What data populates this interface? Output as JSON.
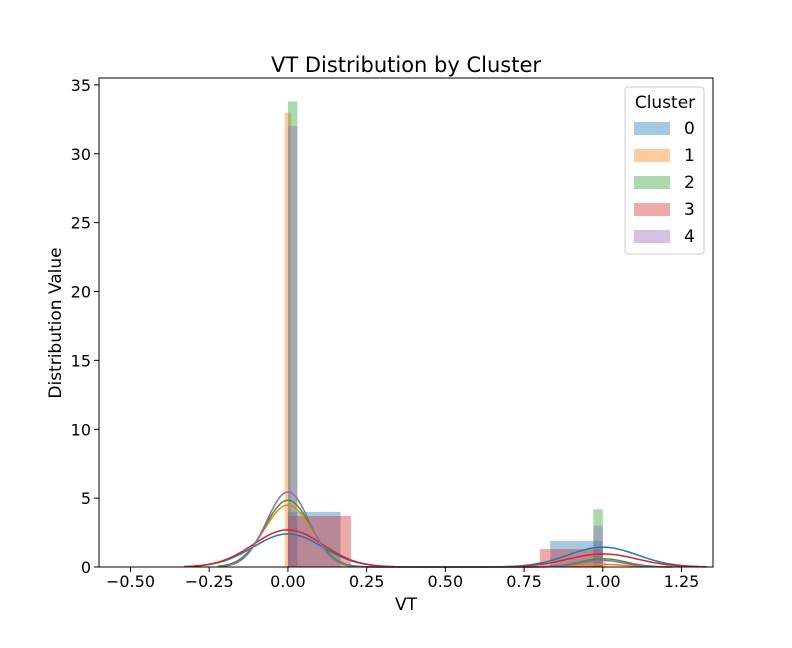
{
  "chart_data": {
    "type": "bar",
    "title": "VT Distribution by Cluster",
    "xlabel": "VT",
    "ylabel": "Distribution Value",
    "xlim": [
      -0.6,
      1.35
    ],
    "ylim": [
      0,
      35.5
    ],
    "x_ticks": [
      -0.5,
      -0.25,
      0.0,
      0.25,
      0.5,
      0.75,
      1.0,
      1.25
    ],
    "x_tick_labels": [
      "−0.50",
      "−0.25",
      "0.00",
      "0.25",
      "0.50",
      "0.75",
      "1.00",
      "1.25"
    ],
    "y_ticks": [
      0,
      5,
      10,
      15,
      20,
      25,
      30,
      35
    ],
    "y_tick_labels": [
      "0",
      "5",
      "10",
      "15",
      "20",
      "25",
      "30",
      "35"
    ],
    "grid": false,
    "legend": {
      "title": "Cluster",
      "position": "top-right"
    },
    "series": [
      {
        "name": "0",
        "color": "#1f77b4",
        "bars": [
          {
            "x0": 0.0,
            "x1": 0.167,
            "height": 4.0
          },
          {
            "x0": 0.833,
            "x1": 1.0,
            "height": 1.9
          }
        ],
        "kde": {
          "weights": [
            0.625,
            0.375
          ],
          "sigma": 0.11,
          "peak0": 2.4
        }
      },
      {
        "name": "1",
        "color": "#ff7f0e",
        "bars": [
          {
            "x0": -0.01,
            "x1": 0.01,
            "height": 33.0
          },
          {
            "x0": 0.99,
            "x1": 1.01,
            "height": 0.4
          }
        ],
        "kde": {
          "weights": [
            0.96,
            0.04
          ],
          "sigma": 0.075,
          "peak0": 4.5
        }
      },
      {
        "name": "2",
        "color": "#2ca02c",
        "bars": [
          {
            "x0": 0.0,
            "x1": 0.03,
            "height": 33.8
          },
          {
            "x0": 0.97,
            "x1": 1.0,
            "height": 4.2
          }
        ],
        "kde": {
          "weights": [
            0.89,
            0.11
          ],
          "sigma": 0.073,
          "peak0": 4.85
        }
      },
      {
        "name": "3",
        "color": "#d62728",
        "bars": [
          {
            "x0": 0.0,
            "x1": 0.2,
            "height": 3.7
          },
          {
            "x0": 0.8,
            "x1": 1.0,
            "height": 1.3
          }
        ],
        "kde": {
          "weights": [
            0.74,
            0.26
          ],
          "sigma": 0.11,
          "peak0": 2.7
        }
      },
      {
        "name": "4",
        "color": "#9467bd",
        "bars": [
          {
            "x0": 0.0,
            "x1": 0.03,
            "height": 32.0
          },
          {
            "x0": 0.97,
            "x1": 1.0,
            "height": 3.0
          }
        ],
        "kde": {
          "weights": [
            0.92,
            0.08
          ],
          "sigma": 0.068,
          "peak0": 5.45
        }
      }
    ]
  }
}
